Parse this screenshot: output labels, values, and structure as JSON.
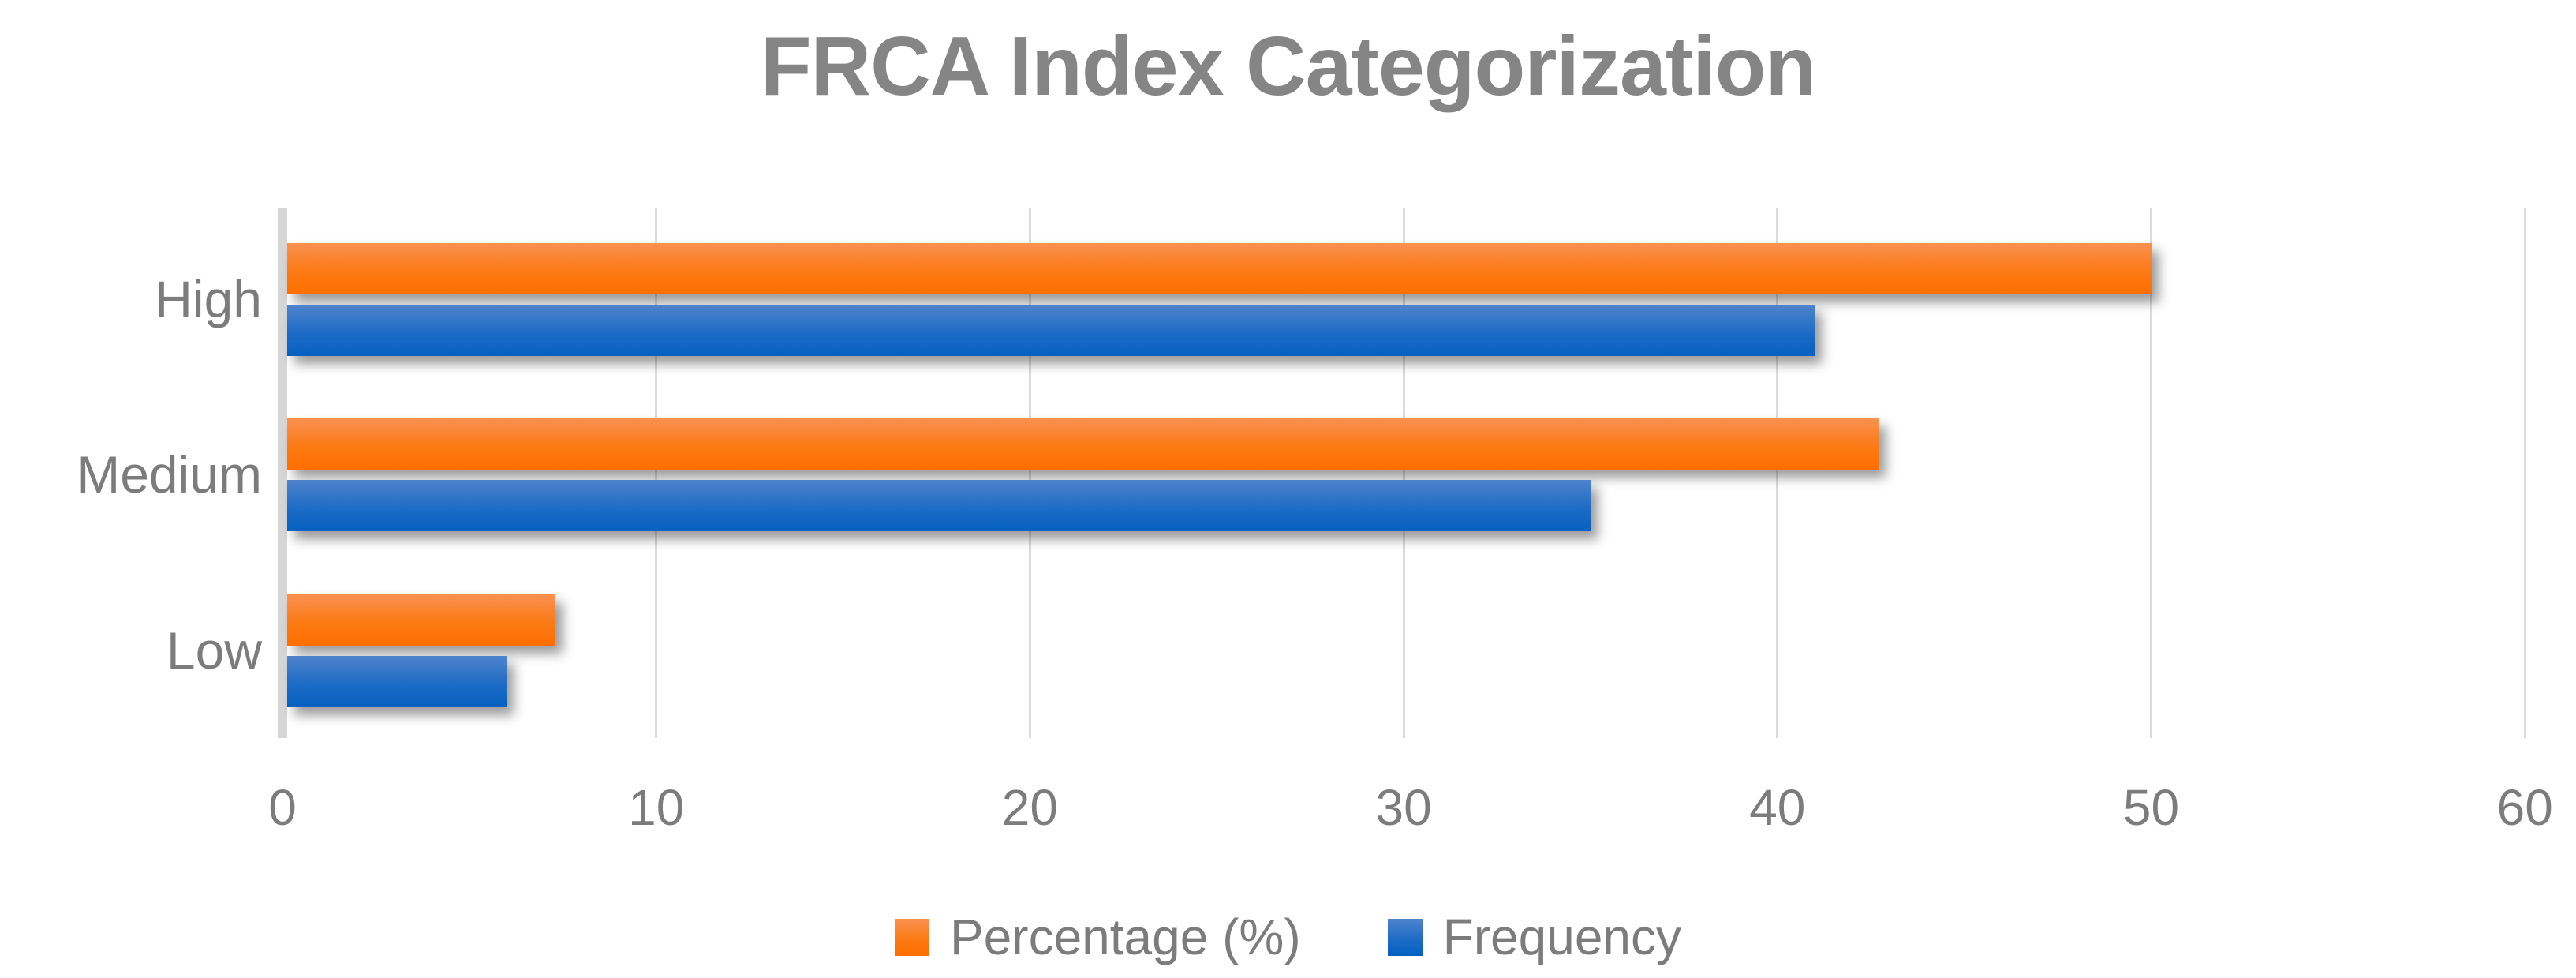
{
  "chart_data": {
    "type": "bar",
    "orientation": "horizontal",
    "title": "FRCA Index Categorization",
    "categories": [
      "High",
      "Medium",
      "Low"
    ],
    "series": [
      {
        "name": "Percentage (%)",
        "values": [
          50,
          42.7,
          7.3
        ],
        "color_top": "#FA9150",
        "color_mid": "#FB7A14",
        "color_bottom": "#FF6E00"
      },
      {
        "name": "Frequency",
        "values": [
          41,
          35,
          6
        ],
        "color_top": "#4F83CC",
        "color_mid": "#1E6CC6",
        "color_bottom": "#0560C0"
      }
    ],
    "xlim": [
      0,
      60
    ],
    "x_ticks": [
      0,
      10,
      20,
      30,
      40,
      50,
      60
    ],
    "grid": true,
    "legend_position": "bottom",
    "title_color": "#858585",
    "text_color": "#7C7C7C",
    "grid_color": "#DCDCDC",
    "background_color": "#FFFFFF"
  }
}
